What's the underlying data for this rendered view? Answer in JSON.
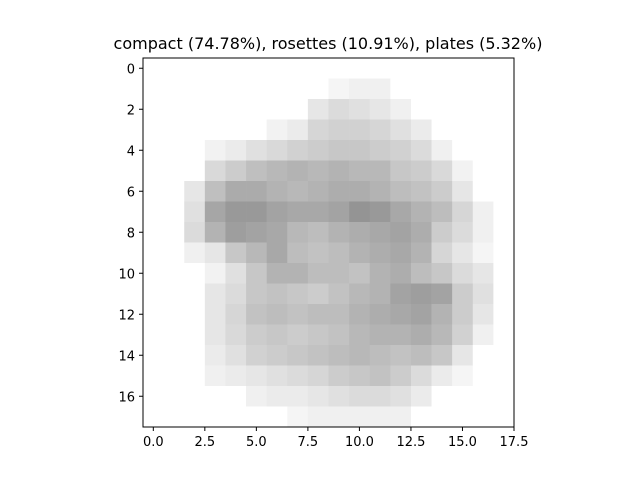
{
  "chart_data": {
    "type": "heatmap",
    "title": "compact (74.78%), rosettes (10.91%), plates (5.32%)",
    "xlabel": "",
    "ylabel": "",
    "xlim": [
      -0.5,
      17.5
    ],
    "ylim": [
      17.5,
      -0.5
    ],
    "x_ticks": [
      0.0,
      2.5,
      5.0,
      7.5,
      10.0,
      12.5,
      15.0,
      17.5
    ],
    "x_tick_labels": [
      "0.0",
      "2.5",
      "5.0",
      "7.5",
      "10.0",
      "12.5",
      "15.0",
      "17.5"
    ],
    "y_ticks": [
      0,
      2,
      4,
      6,
      8,
      10,
      12,
      14,
      16
    ],
    "y_tick_labels": [
      "0",
      "2",
      "4",
      "6",
      "8",
      "10",
      "12",
      "14",
      "16"
    ],
    "colormap": "gray_r",
    "vmin": 0,
    "vmax": 1,
    "grid": false,
    "z": [
      [
        0,
        0,
        0,
        0,
        0,
        0,
        0,
        0,
        0,
        0,
        0,
        0,
        0,
        0,
        0,
        0,
        0,
        0
      ],
      [
        0,
        0,
        0,
        0,
        0,
        0,
        0,
        0,
        0,
        0.04,
        0.06,
        0.06,
        0,
        0,
        0,
        0,
        0,
        0
      ],
      [
        0,
        0,
        0,
        0,
        0,
        0,
        0,
        0,
        0.1,
        0.14,
        0.12,
        0.1,
        0.06,
        0,
        0,
        0,
        0,
        0
      ],
      [
        0,
        0,
        0,
        0,
        0,
        0,
        0.05,
        0.08,
        0.16,
        0.18,
        0.18,
        0.16,
        0.12,
        0.08,
        0,
        0,
        0,
        0
      ],
      [
        0,
        0,
        0,
        0.05,
        0.08,
        0.12,
        0.15,
        0.18,
        0.2,
        0.22,
        0.22,
        0.2,
        0.18,
        0.14,
        0.06,
        0,
        0,
        0
      ],
      [
        0,
        0,
        0,
        0.15,
        0.2,
        0.25,
        0.28,
        0.3,
        0.28,
        0.3,
        0.28,
        0.28,
        0.22,
        0.2,
        0.15,
        0.05,
        0,
        0
      ],
      [
        0,
        0,
        0.1,
        0.25,
        0.33,
        0.33,
        0.3,
        0.28,
        0.3,
        0.32,
        0.32,
        0.3,
        0.26,
        0.24,
        0.2,
        0.1,
        0,
        0
      ],
      [
        0,
        0,
        0.12,
        0.35,
        0.4,
        0.4,
        0.36,
        0.34,
        0.34,
        0.36,
        0.42,
        0.4,
        0.34,
        0.3,
        0.26,
        0.16,
        0.06,
        0
      ],
      [
        0,
        0,
        0.14,
        0.3,
        0.38,
        0.36,
        0.34,
        0.28,
        0.26,
        0.3,
        0.32,
        0.34,
        0.36,
        0.32,
        0.2,
        0.14,
        0.06,
        0
      ],
      [
        0,
        0,
        0.06,
        0.1,
        0.22,
        0.28,
        0.34,
        0.26,
        0.24,
        0.26,
        0.3,
        0.32,
        0.34,
        0.3,
        0.16,
        0.1,
        0.04,
        0
      ],
      [
        0,
        0,
        0,
        0.05,
        0.12,
        0.22,
        0.3,
        0.3,
        0.26,
        0.26,
        0.24,
        0.3,
        0.32,
        0.26,
        0.22,
        0.14,
        0.1,
        0
      ],
      [
        0,
        0,
        0,
        0.1,
        0.14,
        0.22,
        0.24,
        0.22,
        0.2,
        0.24,
        0.28,
        0.3,
        0.36,
        0.38,
        0.36,
        0.2,
        0.12,
        0
      ],
      [
        0,
        0,
        0,
        0.1,
        0.16,
        0.24,
        0.26,
        0.24,
        0.26,
        0.26,
        0.3,
        0.32,
        0.34,
        0.36,
        0.3,
        0.2,
        0.1,
        0
      ],
      [
        0,
        0,
        0,
        0.1,
        0.15,
        0.2,
        0.22,
        0.2,
        0.22,
        0.24,
        0.28,
        0.3,
        0.3,
        0.32,
        0.28,
        0.18,
        0.06,
        0
      ],
      [
        0,
        0,
        0,
        0.08,
        0.12,
        0.18,
        0.2,
        0.22,
        0.24,
        0.26,
        0.28,
        0.26,
        0.24,
        0.26,
        0.22,
        0.1,
        0,
        0
      ],
      [
        0,
        0,
        0,
        0.06,
        0.08,
        0.1,
        0.12,
        0.14,
        0.16,
        0.2,
        0.22,
        0.24,
        0.2,
        0.14,
        0.08,
        0.04,
        0,
        0
      ],
      [
        0,
        0,
        0,
        0,
        0,
        0.06,
        0.08,
        0.08,
        0.1,
        0.12,
        0.14,
        0.14,
        0.12,
        0.08,
        0,
        0,
        0,
        0
      ],
      [
        0,
        0,
        0,
        0,
        0,
        0,
        0,
        0.04,
        0.06,
        0.06,
        0.06,
        0.06,
        0.06,
        0,
        0,
        0,
        0,
        0
      ]
    ]
  }
}
